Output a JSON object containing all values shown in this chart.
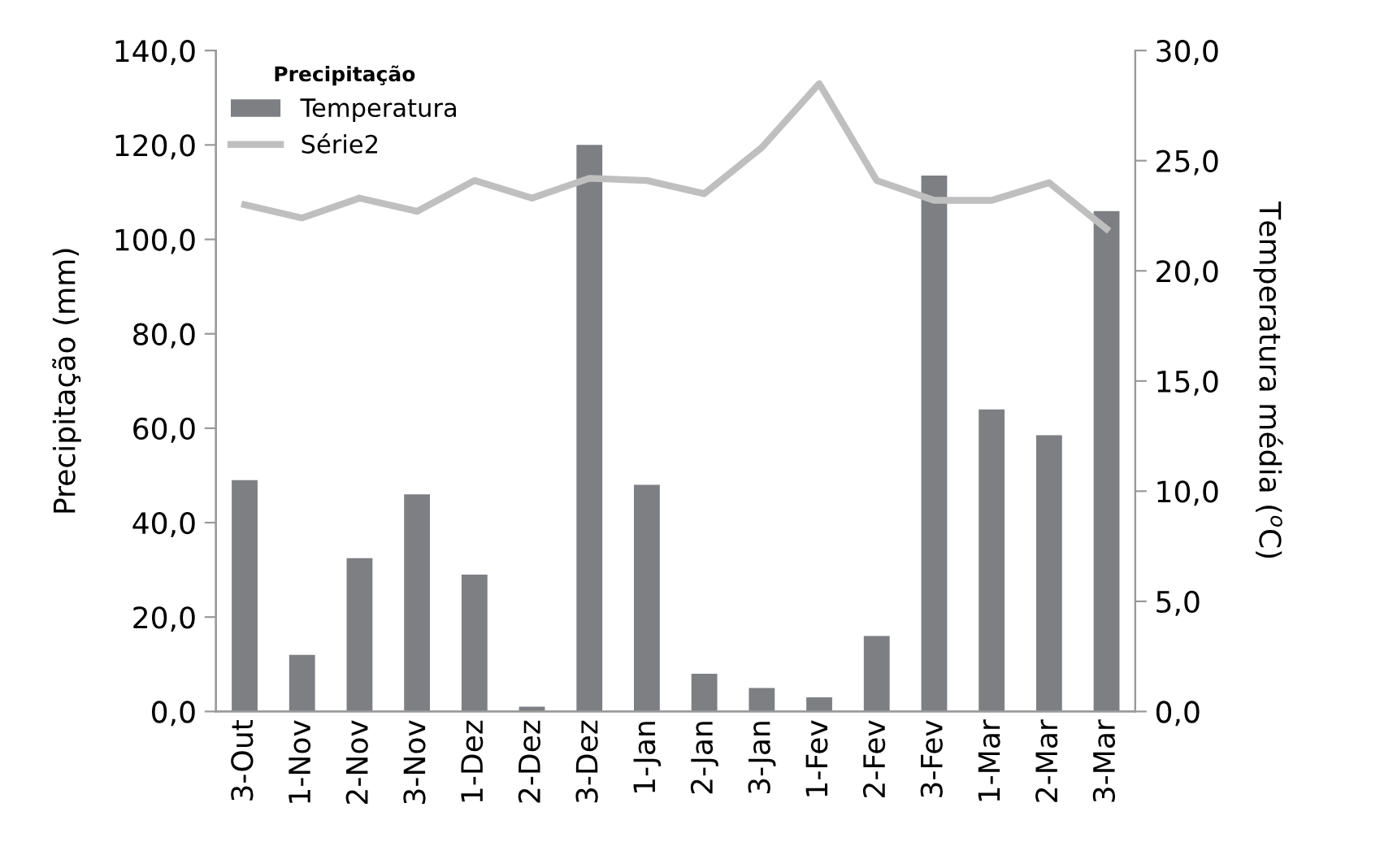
{
  "chart_data": {
    "type": "bar",
    "categories": [
      "3-Out",
      "1-Nov",
      "2-Nov",
      "3-Nov",
      "1-Dez",
      "2-Dez",
      "3-Dez",
      "1-Jan",
      "2-Jan",
      "3-Jan",
      "1-Fev",
      "2-Fev",
      "3-Fev",
      "1-Mar",
      "2-Mar",
      "3-Mar"
    ],
    "series": [
      {
        "name": "Temperatura",
        "color": "#7e7f83",
        "values": [
          49,
          12,
          32.5,
          46,
          29,
          1,
          120,
          48,
          8,
          5,
          3,
          16,
          113.5,
          64,
          58.5,
          106
        ]
      },
      {
        "name": "Série2",
        "type": "line",
        "axis": "y2",
        "color": "#bfbfbf",
        "values": [
          23.0,
          22.4,
          23.3,
          22.7,
          24.1,
          23.3,
          24.2,
          24.1,
          23.5,
          25.6,
          28.5,
          24.1,
          23.2,
          23.2,
          24.0,
          21.9
        ]
      }
    ],
    "legend_title": "Precipitação",
    "ylabel": "Precipitação (mm)",
    "y2label": "Temperatura média ($^{o}$C)",
    "ylim": [
      0,
      140
    ],
    "yticks": [
      {
        "value": 0,
        "label": "0,0"
      },
      {
        "value": 20,
        "label": "20,0"
      },
      {
        "value": 40,
        "label": "40,0"
      },
      {
        "value": 60,
        "label": "60,0"
      },
      {
        "value": 80,
        "label": "80,0"
      },
      {
        "value": 100,
        "label": "100,0"
      },
      {
        "value": 120,
        "label": "120,0"
      },
      {
        "value": 140,
        "label": "140,0"
      }
    ],
    "y2lim": [
      0,
      30
    ],
    "y2ticks": [
      {
        "value": 0,
        "label": "0,0"
      },
      {
        "value": 5,
        "label": "5,0"
      },
      {
        "value": 10,
        "label": "10,0"
      },
      {
        "value": 15,
        "label": "15,0"
      },
      {
        "value": 20,
        "label": "20,0"
      },
      {
        "value": 25,
        "label": "25,0"
      },
      {
        "value": 30,
        "label": "30,0"
      }
    ],
    "grid": false,
    "legend": "top left",
    "marker": "none",
    "line_style": "solid"
  }
}
